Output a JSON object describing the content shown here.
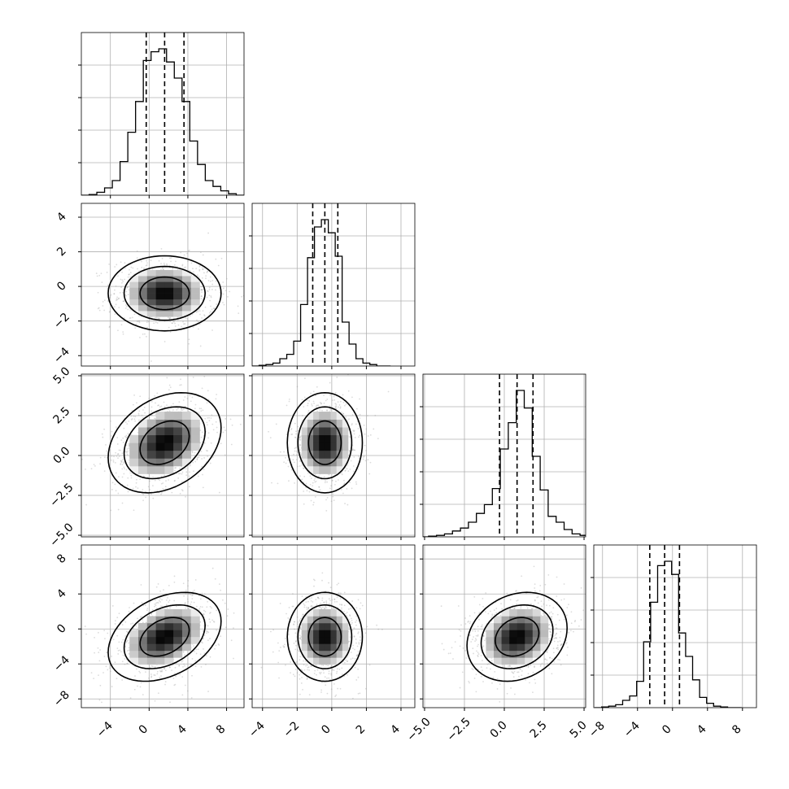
{
  "chart_data": {
    "type": "corner",
    "n_params": 4,
    "xlabel": "",
    "ylabel": "",
    "grid": true,
    "variables": [
      {
        "ticks": [
          -4,
          0,
          4,
          8
        ],
        "tick_labels": [
          "−4",
          "0",
          "4",
          "8"
        ],
        "range": [
          -7.0,
          9.8
        ],
        "quantiles": [
          -0.3,
          1.6,
          3.6
        ],
        "histogram": {
          "bin_centers": [
            -6.6,
            -5.8,
            -5.0,
            -4.2,
            -3.4,
            -2.6,
            -1.8,
            -1.0,
            -0.2,
            0.6,
            1.4,
            2.2,
            3.0,
            3.8,
            4.6,
            5.4,
            6.2,
            7.0,
            7.8,
            8.6,
            9.4
          ],
          "counts": [
            0,
            0.005,
            0.02,
            0.05,
            0.1,
            0.23,
            0.43,
            0.64,
            0.92,
            0.98,
            1.0,
            0.91,
            0.8,
            0.64,
            0.37,
            0.21,
            0.1,
            0.06,
            0.03,
            0.01,
            0
          ]
        }
      },
      {
        "ticks": [
          -4,
          -2,
          0,
          2,
          4
        ],
        "tick_labels": [
          "−4",
          "−2",
          "0",
          "2",
          "4"
        ],
        "range": [
          -4.6,
          4.8
        ],
        "quantiles": [
          -1.1,
          -0.4,
          0.35
        ],
        "histogram": {
          "bin_centers": [
            -4.4,
            -4.0,
            -3.6,
            -3.2,
            -2.8,
            -2.4,
            -2.0,
            -1.6,
            -1.2,
            -0.8,
            -0.4,
            0.0,
            0.4,
            0.8,
            1.2,
            1.6,
            2.0,
            2.4,
            2.8,
            3.2
          ],
          "counts": [
            0,
            0.005,
            0.01,
            0.02,
            0.05,
            0.08,
            0.17,
            0.42,
            0.74,
            0.95,
            1.0,
            0.91,
            0.75,
            0.3,
            0.15,
            0.05,
            0.02,
            0.01,
            0,
            0
          ]
        }
      },
      {
        "ticks": [
          -5.0,
          -2.5,
          0.0,
          2.5,
          5.0
        ],
        "tick_labels": [
          "−5.0",
          "−2.5",
          "0.0",
          "2.5",
          "5.0"
        ],
        "range": [
          -5.1,
          5.1
        ],
        "quantiles": [
          -0.3,
          0.8,
          1.8
        ],
        "histogram": {
          "bin_centers": [
            -5.0,
            -4.5,
            -4.0,
            -3.5,
            -3.0,
            -2.5,
            -2.0,
            -1.5,
            -1.0,
            -0.5,
            0.0,
            0.5,
            1.0,
            1.5,
            2.0,
            2.5,
            3.0,
            3.5,
            4.0,
            4.5,
            5.0
          ],
          "counts": [
            0,
            0.005,
            0.01,
            0.02,
            0.04,
            0.06,
            0.1,
            0.16,
            0.22,
            0.33,
            0.6,
            0.78,
            1.0,
            0.88,
            0.55,
            0.32,
            0.14,
            0.1,
            0.05,
            0.02,
            0.01
          ]
        }
      },
      {
        "ticks": [
          -8,
          -4,
          0,
          4,
          8
        ],
        "tick_labels": [
          "−8",
          "−4",
          "0",
          "4",
          "8"
        ],
        "range": [
          -9.0,
          9.6
        ],
        "quantiles": [
          -2.6,
          -0.9,
          0.8
        ],
        "histogram": {
          "bin_centers": [
            -8.5,
            -7.7,
            -6.9,
            -6.1,
            -5.3,
            -4.5,
            -3.7,
            -2.9,
            -2.1,
            -1.3,
            -0.5,
            0.3,
            1.1,
            1.9,
            2.7,
            3.5,
            4.3,
            5.1,
            5.9,
            6.7,
            7.5
          ],
          "counts": [
            0,
            0.005,
            0.01,
            0.02,
            0.05,
            0.08,
            0.18,
            0.45,
            0.72,
            0.97,
            1.0,
            0.91,
            0.51,
            0.35,
            0.19,
            0.07,
            0.03,
            0.01,
            0.005,
            0,
            0
          ]
        }
      }
    ],
    "correlations": {
      "1,0": 0.0,
      "2,0": 0.3,
      "2,1": 0.0,
      "3,0": 0.35,
      "3,1": 0.0,
      "3,2": 0.2
    }
  }
}
